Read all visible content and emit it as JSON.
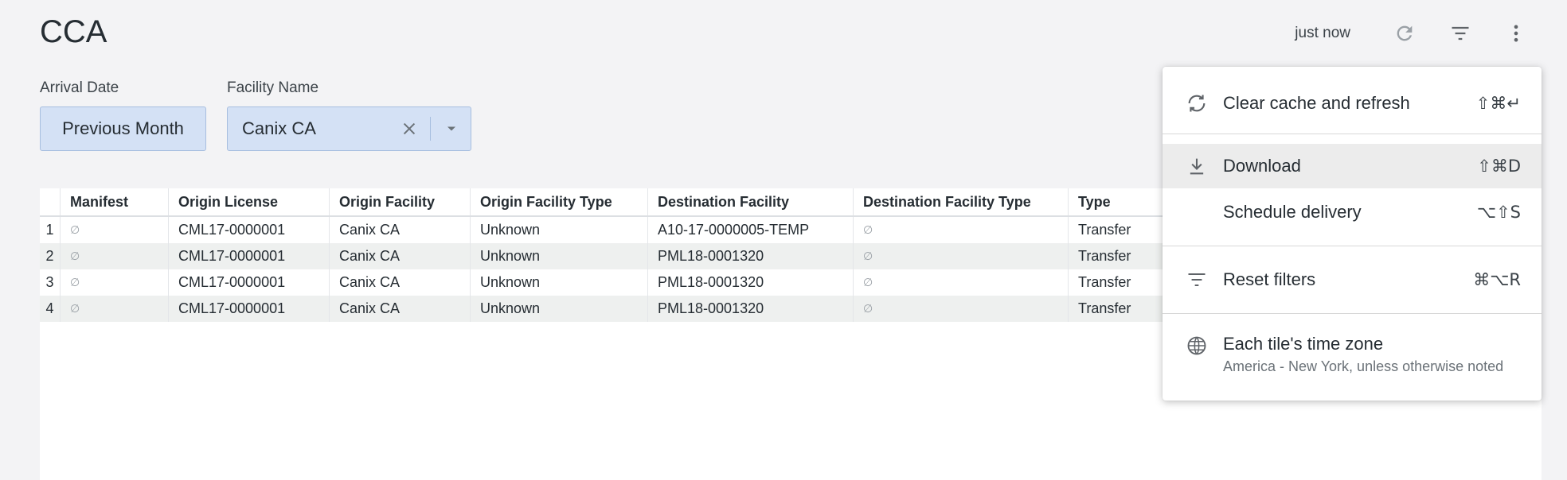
{
  "header": {
    "title": "CCA",
    "updated": "just now"
  },
  "filters": [
    {
      "label": "Arrival Date",
      "value": "Previous Month"
    },
    {
      "label": "Facility Name",
      "value": "Canix CA"
    }
  ],
  "table": {
    "columns": [
      "Manifest",
      "Origin License",
      "Origin Facility",
      "Origin Facility Type",
      "Destination Facility",
      "Destination Facility Type",
      "Type"
    ],
    "null_symbol": "∅",
    "rows": [
      {
        "num": "1",
        "origin_license": "CML17-0000001",
        "origin_facility": "Canix CA",
        "origin_type": "Unknown",
        "dest_facility": "A10-17-0000005-TEMP",
        "type": "Transfer"
      },
      {
        "num": "2",
        "origin_license": "CML17-0000001",
        "origin_facility": "Canix CA",
        "origin_type": "Unknown",
        "dest_facility": "PML18-0001320",
        "type": "Transfer"
      },
      {
        "num": "3",
        "origin_license": "CML17-0000001",
        "origin_facility": "Canix CA",
        "origin_type": "Unknown",
        "dest_facility": "PML18-0001320",
        "type": "Transfer"
      },
      {
        "num": "4",
        "origin_license": "CML17-0000001",
        "origin_facility": "Canix CA",
        "origin_type": "Unknown",
        "dest_facility": "PML18-0001320",
        "type": "Transfer"
      }
    ]
  },
  "menu": {
    "items": [
      {
        "label": "Clear cache and refresh",
        "shortcut": "⇧⌘↵",
        "icon": "refresh-cache-icon"
      },
      {
        "label": "Download",
        "shortcut": "⇧⌘D",
        "icon": "download-icon"
      },
      {
        "label": "Schedule delivery",
        "shortcut": "⌥⇧S"
      },
      {
        "label": "Reset filters",
        "shortcut": "⌘⌥R",
        "icon": "filter-icon"
      },
      {
        "label": "Each tile's time zone",
        "sublabel": "America - New York, unless otherwise noted",
        "icon": "globe-icon"
      }
    ]
  }
}
